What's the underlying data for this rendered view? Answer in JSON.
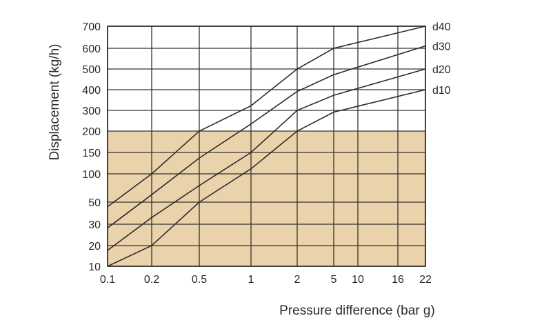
{
  "chart_data": {
    "type": "line",
    "xlabel": "Pressure difference (bar g)",
    "ylabel": "Displacement (kg/h)",
    "title": "",
    "x_ticks": [
      "0.1",
      "0.2",
      "0.5",
      "1",
      "2",
      "5",
      "10",
      "16",
      "22"
    ],
    "y_ticks": [
      "10",
      "20",
      "30",
      "50",
      "100",
      "150",
      "200",
      "300",
      "400",
      "500",
      "600",
      "700"
    ],
    "xlim": [
      0.1,
      22
    ],
    "ylim": [
      10,
      700
    ],
    "grid": true,
    "shaded_region": {
      "y_from": 10,
      "y_to": 200,
      "color": "#ead2ab"
    },
    "legend": "right-end labels",
    "series": [
      {
        "name": "d40",
        "points": [
          [
            0.1,
            45
          ],
          [
            0.2,
            100
          ],
          [
            0.5,
            200
          ],
          [
            1,
            320
          ],
          [
            2,
            500
          ],
          [
            5,
            600
          ],
          [
            22,
            700
          ]
        ]
      },
      {
        "name": "d30",
        "points": [
          [
            0.1,
            28
          ],
          [
            0.2,
            60
          ],
          [
            0.5,
            135
          ],
          [
            1,
            230
          ],
          [
            2,
            390
          ],
          [
            5,
            470
          ],
          [
            22,
            610
          ]
        ]
      },
      {
        "name": "d20",
        "points": [
          [
            0.1,
            17
          ],
          [
            0.2,
            35
          ],
          [
            0.5,
            75
          ],
          [
            1,
            150
          ],
          [
            2,
            300
          ],
          [
            5,
            370
          ],
          [
            22,
            500
          ]
        ]
      },
      {
        "name": "d10",
        "points": [
          [
            0.1,
            10
          ],
          [
            0.2,
            20
          ],
          [
            0.5,
            50
          ],
          [
            1,
            110
          ],
          [
            2,
            200
          ],
          [
            5,
            290
          ],
          [
            22,
            400
          ]
        ]
      }
    ]
  }
}
